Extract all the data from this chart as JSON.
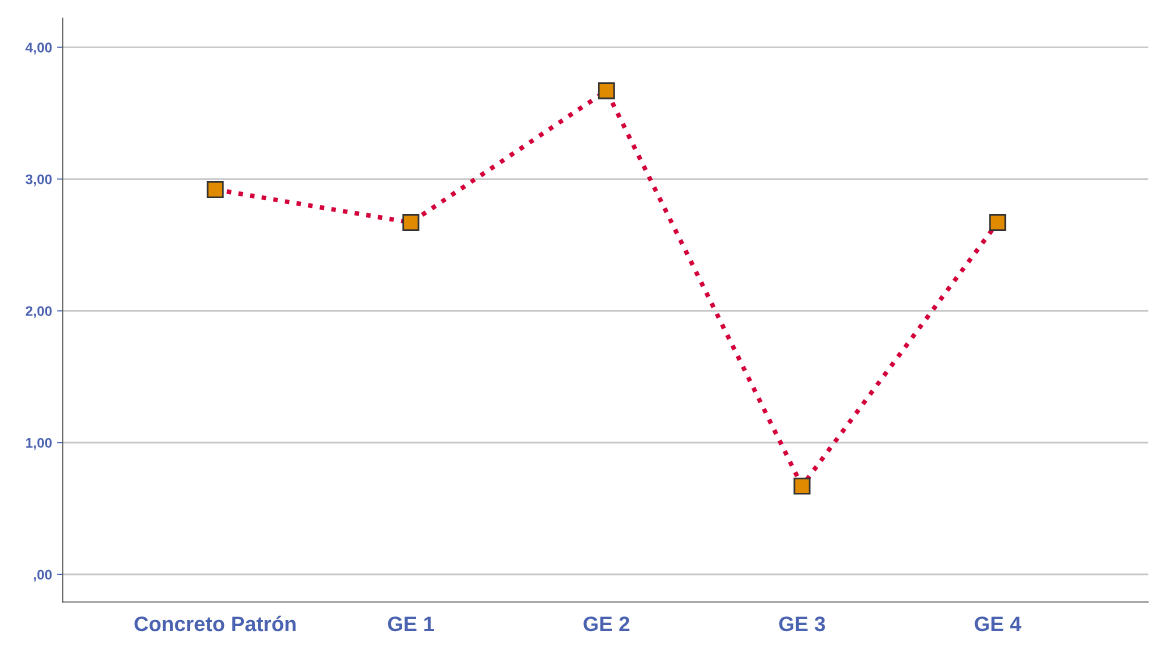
{
  "chart_data": {
    "type": "line",
    "categories": [
      "Concreto Patrón",
      "GE 1",
      "GE 2",
      "GE 3",
      "GE 4"
    ],
    "series": [
      {
        "color": "#d4003a",
        "values": [
          2.92,
          2.67,
          3.67,
          0.67,
          2.67
        ]
      }
    ],
    "marker": "square",
    "line_style": "dotted",
    "ylim": [
      -0.21,
      4.22
    ],
    "yticks": [
      {
        "value": 0,
        "label": ",00"
      },
      {
        "value": 1,
        "label": "1,00"
      },
      {
        "value": 2,
        "label": "2,00"
      },
      {
        "value": 3,
        "label": "3,00"
      },
      {
        "value": 4,
        "label": "4,00"
      }
    ],
    "grid": "y",
    "legend": false
  }
}
